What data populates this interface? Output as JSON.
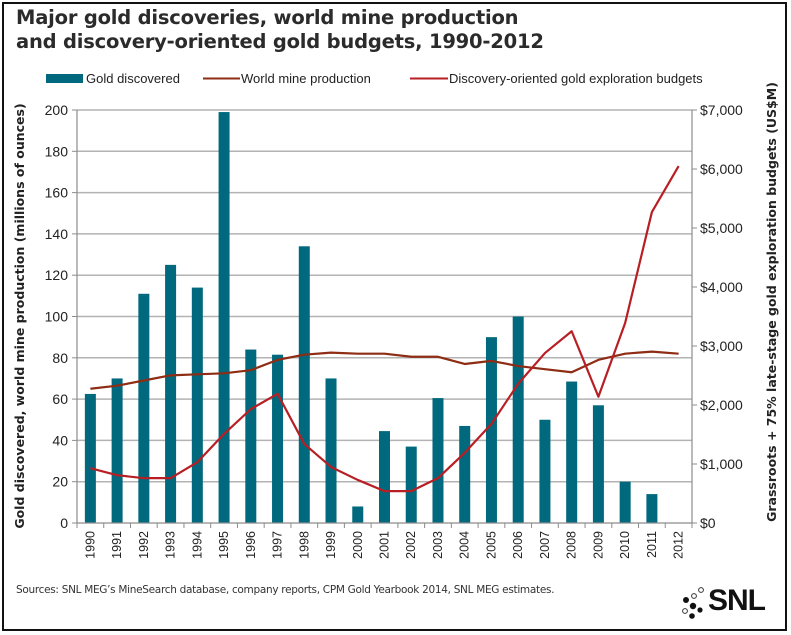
{
  "chart_data": {
    "type": "bar",
    "title": "Major gold discoveries, world mine production and discovery-oriented gold budgets, 1990-2012",
    "title_lines": [
      "Major gold discoveries, world mine production",
      "and discovery-oriented gold budgets, 1990-2012"
    ],
    "categories": [
      "1990",
      "1991",
      "1992",
      "1993",
      "1994",
      "1995",
      "1996",
      "1997",
      "1998",
      "1999",
      "2000",
      "2001",
      "2002",
      "2003",
      "2004",
      "2005",
      "2006",
      "2007",
      "2008",
      "2009",
      "2010",
      "2011",
      "2012"
    ],
    "series": [
      {
        "name": "Gold discovered",
        "type": "bar",
        "axis": "left",
        "color": "#00697d",
        "values": [
          62.5,
          70,
          111,
          125,
          114,
          199,
          84,
          81.5,
          134,
          70,
          8,
          44.5,
          37,
          60.5,
          47,
          90,
          100,
          50,
          68.5,
          57,
          20,
          14,
          null
        ]
      },
      {
        "name": "World mine production",
        "type": "line",
        "axis": "left",
        "color": "#8e2c14",
        "values": [
          65,
          66.5,
          69,
          71.5,
          72,
          72.5,
          74,
          79,
          81.5,
          82.5,
          82,
          82,
          80.5,
          80.5,
          77,
          78.5,
          76,
          74.5,
          73,
          79,
          82,
          83,
          82
        ]
      },
      {
        "name": "Discovery-oriented gold exploration budgets",
        "type": "line",
        "axis": "right",
        "color": "#b81f24",
        "values": [
          930,
          810,
          760,
          760,
          1030,
          1510,
          1930,
          2190,
          1340,
          950,
          730,
          540,
          540,
          760,
          1190,
          1680,
          2360,
          2880,
          3250,
          2140,
          3390,
          5270,
          6050
        ]
      }
    ],
    "left_axis": {
      "label": "Gold discovered, world mine production (millions of ounces)",
      "ylim": [
        0,
        200
      ],
      "ticks": [
        0,
        20,
        40,
        60,
        80,
        100,
        120,
        140,
        160,
        180,
        200
      ],
      "tick_labels": [
        "0",
        "20",
        "40",
        "60",
        "80",
        "100",
        "120",
        "140",
        "160",
        "180",
        "200"
      ]
    },
    "right_axis": {
      "label": "Grassroots + 75% late-stage gold exploration budgets (US$M)",
      "ylim": [
        0,
        7000
      ],
      "ticks": [
        0,
        1000,
        2000,
        3000,
        4000,
        5000,
        6000,
        7000
      ],
      "tick_labels": [
        "$0",
        "$1,000",
        "$2,000",
        "$3,000",
        "$4,000",
        "$5,000",
        "$6,000",
        "$7,000"
      ]
    },
    "xlabel": "",
    "grid": true,
    "legend_position": "top"
  },
  "footer": {
    "source": "Sources: SNL MEG’s MineSearch database, company reports, CPM Gold Yearbook 2014, SNL MEG estimates.",
    "logo_text": "SNL"
  }
}
